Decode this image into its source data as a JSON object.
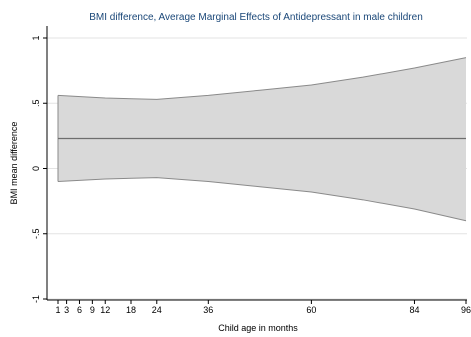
{
  "chart_data": {
    "type": "line",
    "title": "BMI difference, Average Marginal Effects of Antidepressant in male children",
    "xlabel": "Child age in months",
    "ylabel": "BMI mean difference",
    "x_ticks": [
      1,
      3,
      6,
      9,
      12,
      18,
      24,
      36,
      60,
      84,
      96
    ],
    "x_tick_labels": [
      "1",
      "3",
      "6",
      "9",
      "12",
      "18",
      "24",
      "36",
      "60",
      "84",
      "96"
    ],
    "y_ticks": [
      -1,
      -0.5,
      0,
      0.5,
      1
    ],
    "y_tick_labels": [
      "-1",
      "-.5",
      "0",
      ".5",
      "1"
    ],
    "xlim": [
      1,
      96
    ],
    "ylim": [
      -1,
      1
    ],
    "grid": "horizontal",
    "series": [
      {
        "type": "line",
        "x": [
          1,
          96
        ],
        "y": [
          0.23,
          0.23
        ]
      },
      {
        "type": "band",
        "x": [
          1,
          12,
          24,
          36,
          48,
          60,
          72,
          84,
          96
        ],
        "upper": [
          0.56,
          0.54,
          0.53,
          0.56,
          0.6,
          0.64,
          0.7,
          0.77,
          0.85
        ],
        "lower": [
          -0.1,
          -0.08,
          -0.07,
          -0.1,
          -0.14,
          -0.18,
          -0.24,
          -0.31,
          -0.4
        ]
      }
    ],
    "colors": {
      "band_fill": "#d9d9d9",
      "band_stroke": "#8a8a8a",
      "line": "#6e6e6e",
      "grid": "#e3e3e3",
      "plot_background": "#ffffff",
      "title": "#1a4778"
    }
  }
}
